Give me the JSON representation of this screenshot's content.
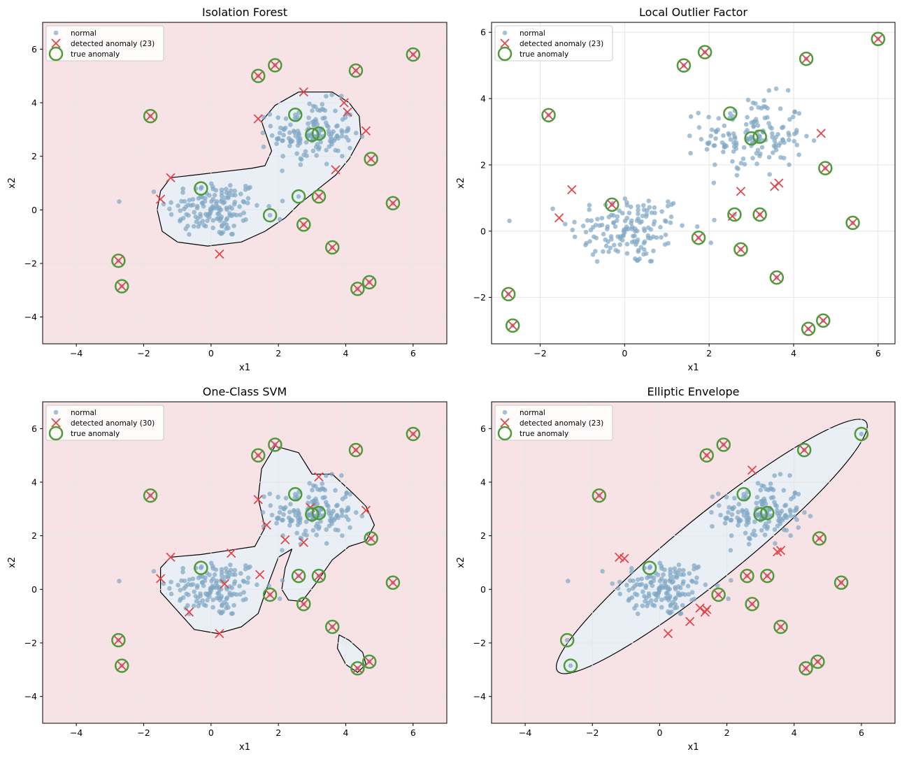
{
  "labels": {
    "normal": "normal",
    "detected_prefix": "detected anomaly",
    "true_anomaly": "true anomaly"
  },
  "colors": {
    "normal_point": "#7fa6c4",
    "detected_marker": "#e0474c",
    "true_ring": "#4f9a3a",
    "outlier_region": "#f7e3e5",
    "inlier_region": "#e9eff4",
    "boundary": "#000000",
    "grid": "#e6e6e6"
  },
  "true_anomalies": [
    [
      -1.8,
      3.5
    ],
    [
      1.4,
      5.0
    ],
    [
      1.9,
      5.4
    ],
    [
      4.3,
      5.2
    ],
    [
      6.0,
      5.8
    ],
    [
      2.5,
      3.55
    ],
    [
      3.0,
      2.8
    ],
    [
      3.2,
      2.85
    ],
    [
      4.75,
      1.9
    ],
    [
      5.4,
      0.25
    ],
    [
      -0.3,
      0.8
    ],
    [
      2.6,
      0.5
    ],
    [
      3.2,
      0.5
    ],
    [
      1.75,
      -0.2
    ],
    [
      2.75,
      -0.55
    ],
    [
      3.6,
      -1.4
    ],
    [
      -2.75,
      -1.9
    ],
    [
      -2.65,
      -2.85
    ],
    [
      4.35,
      -2.95
    ],
    [
      4.7,
      -2.7
    ]
  ],
  "chart_data": [
    {
      "type": "scatter",
      "title": "Isolation Forest",
      "xlabel": "x1",
      "ylabel": "x2",
      "xlim": [
        -5,
        7
      ],
      "ylim": [
        -5,
        7
      ],
      "xticks": [
        -4,
        -2,
        0,
        2,
        4,
        6
      ],
      "yticks": [
        -4,
        -2,
        0,
        2,
        4,
        6
      ],
      "decision_region": true,
      "legend": {
        "location": "top-left",
        "detected_count": 23
      },
      "detected_anomalies": [
        [
          -1.8,
          3.5
        ],
        [
          1.4,
          5.0
        ],
        [
          1.9,
          5.4
        ],
        [
          4.3,
          5.2
        ],
        [
          6.0,
          5.8
        ],
        [
          2.75,
          4.4
        ],
        [
          3.95,
          4.0
        ],
        [
          4.05,
          3.65
        ],
        [
          1.4,
          3.4
        ],
        [
          4.6,
          2.95
        ],
        [
          4.75,
          1.9
        ],
        [
          3.7,
          1.5
        ],
        [
          -1.2,
          1.2
        ],
        [
          -1.5,
          0.4
        ],
        [
          3.2,
          0.5
        ],
        [
          5.4,
          0.25
        ],
        [
          2.75,
          -0.55
        ],
        [
          3.6,
          -1.4
        ],
        [
          0.25,
          -1.65
        ],
        [
          -2.75,
          -1.9
        ],
        [
          -2.65,
          -2.85
        ],
        [
          4.35,
          -2.95
        ],
        [
          4.7,
          -2.7
        ]
      ]
    },
    {
      "type": "scatter",
      "title": "Local Outlier Factor",
      "xlabel": "x1",
      "ylabel": "x2",
      "xlim": [
        -3.15,
        6.4
      ],
      "ylim": [
        -3.4,
        6.3
      ],
      "xticks": [
        -2,
        0,
        2,
        4,
        6
      ],
      "yticks": [
        -2,
        0,
        2,
        4,
        6
      ],
      "decision_region": false,
      "legend": {
        "location": "top-left",
        "detected_count": 23
      },
      "detected_anomalies": [
        [
          -1.8,
          3.5
        ],
        [
          1.4,
          5.0
        ],
        [
          1.9,
          5.4
        ],
        [
          4.3,
          5.2
        ],
        [
          6.0,
          5.8
        ],
        [
          4.65,
          2.95
        ],
        [
          4.75,
          1.9
        ],
        [
          3.65,
          1.45
        ],
        [
          3.55,
          1.35
        ],
        [
          2.75,
          1.2
        ],
        [
          -1.25,
          1.25
        ],
        [
          -1.55,
          0.4
        ],
        [
          2.55,
          0.45
        ],
        [
          3.2,
          0.5
        ],
        [
          5.4,
          0.25
        ],
        [
          1.75,
          -0.2
        ],
        [
          2.75,
          -0.55
        ],
        [
          3.6,
          -1.4
        ],
        [
          -2.75,
          -1.9
        ],
        [
          -2.65,
          -2.85
        ],
        [
          4.35,
          -2.95
        ],
        [
          4.7,
          -2.7
        ],
        [
          -0.3,
          0.8
        ]
      ]
    },
    {
      "type": "scatter",
      "title": "One-Class SVM",
      "xlabel": "x1",
      "ylabel": "x2",
      "xlim": [
        -5,
        7
      ],
      "ylim": [
        -5,
        7
      ],
      "xticks": [
        -4,
        -2,
        0,
        2,
        4,
        6
      ],
      "yticks": [
        -4,
        -2,
        0,
        2,
        4,
        6
      ],
      "decision_region": true,
      "legend": {
        "location": "top-left",
        "detected_count": 30
      },
      "detected_anomalies": [
        [
          -1.8,
          3.5
        ],
        [
          1.4,
          5.0
        ],
        [
          1.9,
          5.4
        ],
        [
          4.3,
          5.2
        ],
        [
          6.0,
          5.8
        ],
        [
          3.2,
          4.2
        ],
        [
          1.4,
          3.35
        ],
        [
          4.6,
          2.95
        ],
        [
          2.95,
          3.05
        ],
        [
          1.65,
          2.4
        ],
        [
          2.2,
          1.85
        ],
        [
          2.75,
          1.75
        ],
        [
          4.75,
          1.9
        ],
        [
          -1.2,
          1.2
        ],
        [
          0.6,
          1.35
        ],
        [
          -1.5,
          0.4
        ],
        [
          1.45,
          0.55
        ],
        [
          5.4,
          0.25
        ],
        [
          0.4,
          0.2
        ],
        [
          -0.65,
          -0.85
        ],
        [
          0.25,
          -1.65
        ],
        [
          3.6,
          -1.4
        ],
        [
          -2.75,
          -1.9
        ],
        [
          -2.65,
          -2.85
        ],
        [
          4.35,
          -2.95
        ],
        [
          4.7,
          -2.7
        ],
        [
          2.75,
          -0.55
        ],
        [
          1.75,
          -0.2
        ],
        [
          3.2,
          0.5
        ],
        [
          2.6,
          0.5
        ]
      ]
    },
    {
      "type": "scatter",
      "title": "Elliptic Envelope",
      "xlabel": "x1",
      "ylabel": "x2",
      "xlim": [
        -5,
        7
      ],
      "ylim": [
        -5,
        7
      ],
      "xticks": [
        -4,
        -2,
        0,
        2,
        4,
        6
      ],
      "yticks": [
        -4,
        -2,
        0,
        2,
        4,
        6
      ],
      "decision_region": true,
      "legend": {
        "location": "top-left",
        "detected_count": 23
      },
      "detected_anomalies": [
        [
          -1.8,
          3.5
        ],
        [
          1.4,
          5.0
        ],
        [
          1.9,
          5.4
        ],
        [
          2.75,
          4.45
        ],
        [
          4.75,
          1.9
        ],
        [
          3.6,
          1.45
        ],
        [
          3.5,
          1.4
        ],
        [
          -1.2,
          1.2
        ],
        [
          -1.05,
          1.15
        ],
        [
          2.6,
          0.5
        ],
        [
          3.2,
          0.5
        ],
        [
          5.4,
          0.25
        ],
        [
          1.75,
          -0.2
        ],
        [
          2.75,
          -0.55
        ],
        [
          1.2,
          -0.7
        ],
        [
          1.4,
          -0.75
        ],
        [
          1.35,
          -0.85
        ],
        [
          0.9,
          -1.2
        ],
        [
          0.25,
          -1.65
        ],
        [
          3.6,
          -1.4
        ],
        [
          4.35,
          -2.95
        ],
        [
          4.7,
          -2.7
        ],
        [
          4.3,
          5.2
        ]
      ]
    }
  ]
}
